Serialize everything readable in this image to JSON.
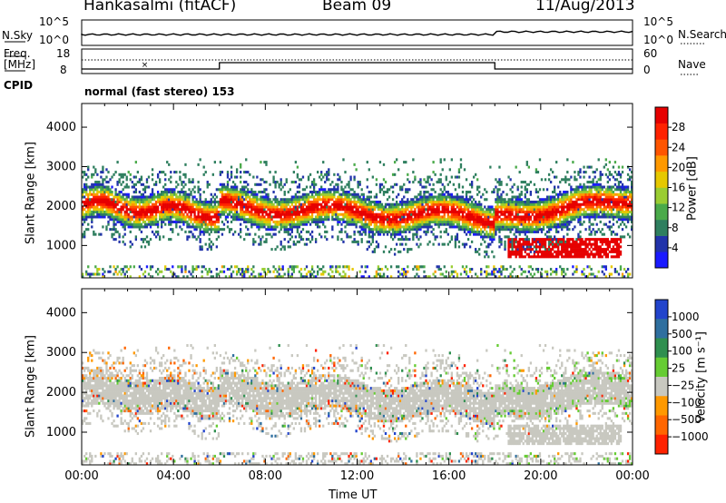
{
  "header": {
    "station": "Hankasalmi (fitACF)",
    "beam": "Beam 09",
    "date": "11/Aug/2013"
  },
  "top_panels": {
    "nsky_label": "N.Sky",
    "nsky_ticks": [
      "10^5",
      "10^0"
    ],
    "nsearch_label": "N.Search",
    "nsearch_ticks": [
      "10^5",
      "10^0"
    ],
    "freq_label": "Freq.",
    "freq_unit": "[MHz]",
    "freq_ticks": [
      "18",
      "8"
    ],
    "nave_label": "Nave",
    "nave_ticks": [
      "60",
      "0"
    ],
    "cpid_label": "CPID",
    "cpid_value": "normal (fast stereo) 153"
  },
  "chart_data": [
    {
      "type": "heatmap",
      "panel": "power",
      "ylabel": "Slant Range [km]",
      "xlabel": "Time UT",
      "ylim": [
        180,
        4600
      ],
      "xlim": [
        0,
        24
      ],
      "yticks": [
        "1000",
        "2000",
        "3000",
        "4000"
      ],
      "xticks": [
        "00:00",
        "04:00",
        "08:00",
        "12:00",
        "16:00",
        "20:00",
        "00:00"
      ],
      "colorbar": {
        "label": "Power [dB]",
        "ticks": [
          "4",
          "8",
          "12",
          "16",
          "20",
          "24",
          "28"
        ],
        "colors": [
          "#1a1aff",
          "#2233aa",
          "#2f7f5f",
          "#4aaa4a",
          "#9acd32",
          "#e6c800",
          "#ff9900",
          "#ff5500",
          "#ff2200",
          "#e60000"
        ]
      }
    },
    {
      "type": "heatmap",
      "panel": "velocity",
      "ylabel": "Slant Range [km]",
      "xlabel": "Time UT",
      "ylim": [
        180,
        4600
      ],
      "xlim": [
        0,
        24
      ],
      "yticks": [
        "1000",
        "2000",
        "3000",
        "4000"
      ],
      "xticks": [
        "00:00",
        "04:00",
        "08:00",
        "12:00",
        "16:00",
        "20:00",
        "00:00"
      ],
      "colorbar": {
        "label": "Velocity [m s⁻¹]",
        "ticks": [
          "1000",
          "500",
          "100",
          "25",
          "−25",
          "−100",
          "−500",
          "−1000"
        ],
        "colors": [
          "#2244cc",
          "#2f6f9f",
          "#2f8f4f",
          "#66cc33",
          "#c8c8c0",
          "#ff9900",
          "#ff6600",
          "#ff2200"
        ]
      }
    }
  ]
}
